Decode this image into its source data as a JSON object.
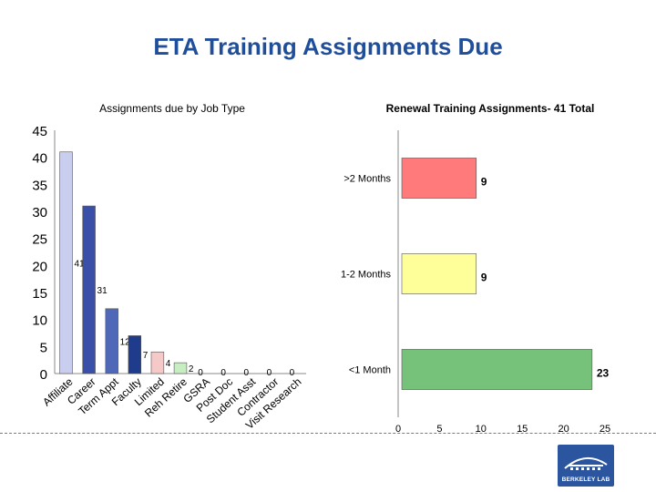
{
  "slide": {
    "title": "ETA Training Assignments Due",
    "logo_text": "BERKELEY LAB"
  },
  "chart_data": [
    {
      "type": "bar",
      "title": "Assignments due by Job Type",
      "xlabel": "",
      "ylabel": "",
      "ylim": [
        0,
        45
      ],
      "yticks": [
        0,
        5,
        10,
        15,
        20,
        25,
        30,
        35,
        40,
        45
      ],
      "categories": [
        "Affiliate",
        "Career",
        "Term Appt",
        "Faculty",
        "Limited",
        "Reh Retire",
        "GSRA",
        "Post Doc",
        "Student Asst",
        "Contractor",
        "Visit Research"
      ],
      "values": [
        41,
        31,
        12,
        7,
        4,
        2,
        0,
        0,
        0,
        0,
        0
      ],
      "data_labels": [
        "41",
        "31",
        "12",
        "7",
        "4",
        "2",
        "0",
        "0",
        "0",
        "0",
        "0"
      ],
      "colors": [
        "#c9cdee",
        "#3a4fa8",
        "#4f68b8",
        "#1f3b8c",
        "#f6c9c9",
        "#c6eec0",
        "#ffffff",
        "#ffffff",
        "#ffffff",
        "#ffffff",
        "#ffffff"
      ],
      "grid": false,
      "legend": "none"
    },
    {
      "type": "bar",
      "orientation": "horizontal",
      "title": "Renewal Training Assignments- 41 Total",
      "xlabel": "",
      "ylabel": "",
      "xlim": [
        0,
        25
      ],
      "xticks": [
        0,
        5,
        10,
        15,
        20,
        25
      ],
      "categories": [
        ">2 Months",
        "1-2 Months",
        "<1 Month"
      ],
      "values": [
        9,
        9,
        23
      ],
      "data_labels": [
        "9",
        "9",
        "23"
      ],
      "colors": [
        "#ff7b7b",
        "#ffff99",
        "#77c27a"
      ],
      "grid": false,
      "legend": "none"
    }
  ]
}
